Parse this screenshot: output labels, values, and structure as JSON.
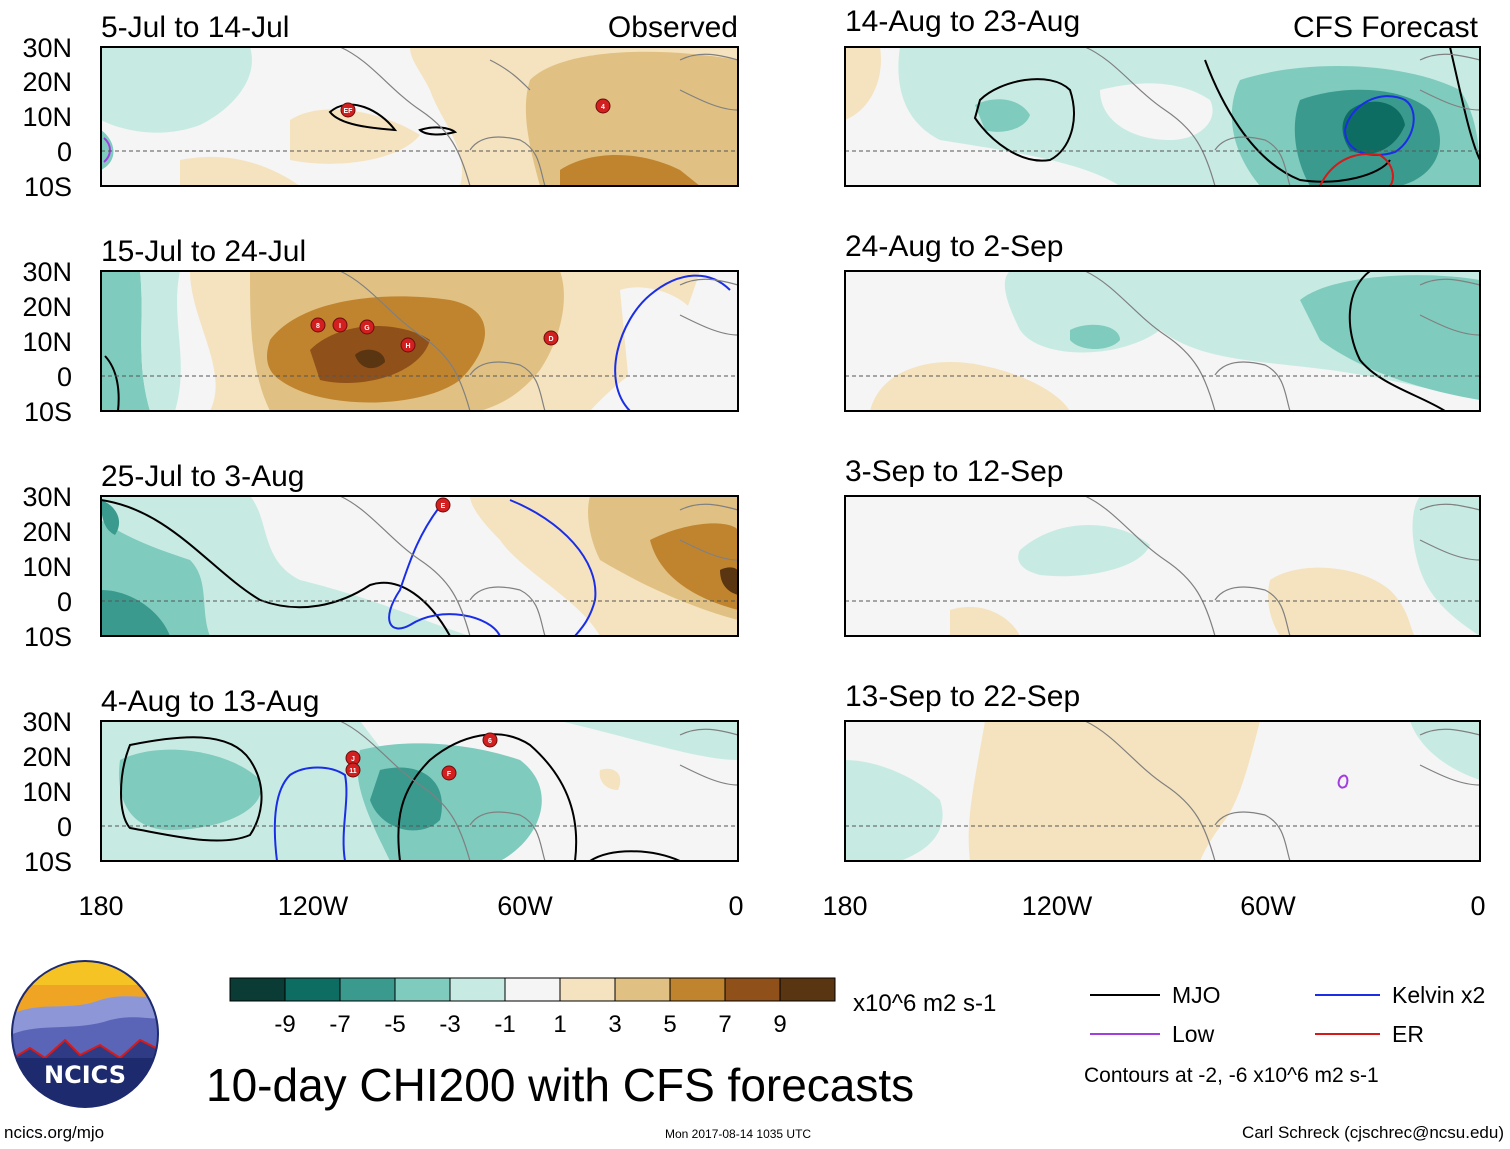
{
  "figure": {
    "title": "10-day CHI200 with CFS forecasts",
    "site": "ncics.org/mjo",
    "timestamp": "Mon 2017-08-14 1035 UTC",
    "author": "Carl Schreck (cjschrec@ncsu.edu)",
    "logo_text": "NCICS"
  },
  "panels": [
    {
      "period": "5-Jul to 14-Jul",
      "tag": "Observed"
    },
    {
      "period": "15-Jul to 24-Jul",
      "tag": ""
    },
    {
      "period": "25-Jul to 3-Aug",
      "tag": ""
    },
    {
      "period": "4-Aug to 13-Aug",
      "tag": ""
    },
    {
      "period": "14-Aug to 23-Aug",
      "tag": "CFS Forecast"
    },
    {
      "period": "24-Aug to 2-Sep",
      "tag": ""
    },
    {
      "period": "3-Sep to 12-Sep",
      "tag": ""
    },
    {
      "period": "13-Sep to 22-Sep",
      "tag": ""
    }
  ],
  "axes": {
    "lat_labels": [
      "30N",
      "20N",
      "10N",
      "0",
      "10S"
    ],
    "lon_labels": [
      "180",
      "120W",
      "60W",
      "0"
    ]
  },
  "colorbar": {
    "units": "x10^6 m2 s-1",
    "tick_labels": [
      "-9",
      "-7",
      "-5",
      "-3",
      "-1",
      "1",
      "3",
      "5",
      "7",
      "9"
    ],
    "colors": [
      "#0b3b35",
      "#0e6d62",
      "#3a9a8e",
      "#7fcbbe",
      "#c7ebe3",
      "#f5f5f5",
      "#f5e3bf",
      "#e0c183",
      "#c0842f",
      "#8f5119",
      "#5a3511"
    ]
  },
  "legend": {
    "items": [
      {
        "label": "MJO",
        "color": "#000000"
      },
      {
        "label": "Kelvin x2",
        "color": "#1a2ee6"
      },
      {
        "label": "Low",
        "color": "#a23ee0"
      },
      {
        "label": "ER",
        "color": "#d61a1a"
      }
    ],
    "note": "Contours at -2, -6 x10^6 m2 s-1"
  },
  "storms": [
    {
      "panel": 0,
      "label": "EF"
    },
    {
      "panel": 0,
      "label": "4"
    },
    {
      "panel": 1,
      "label": "8"
    },
    {
      "panel": 1,
      "label": "I"
    },
    {
      "panel": 1,
      "label": "G"
    },
    {
      "panel": 1,
      "label": "H"
    },
    {
      "panel": 1,
      "label": "D"
    },
    {
      "panel": 2,
      "label": "E"
    },
    {
      "panel": 3,
      "label": "J"
    },
    {
      "panel": 3,
      "label": "11"
    },
    {
      "panel": 3,
      "label": "6"
    },
    {
      "panel": 3,
      "label": "F"
    }
  ]
}
